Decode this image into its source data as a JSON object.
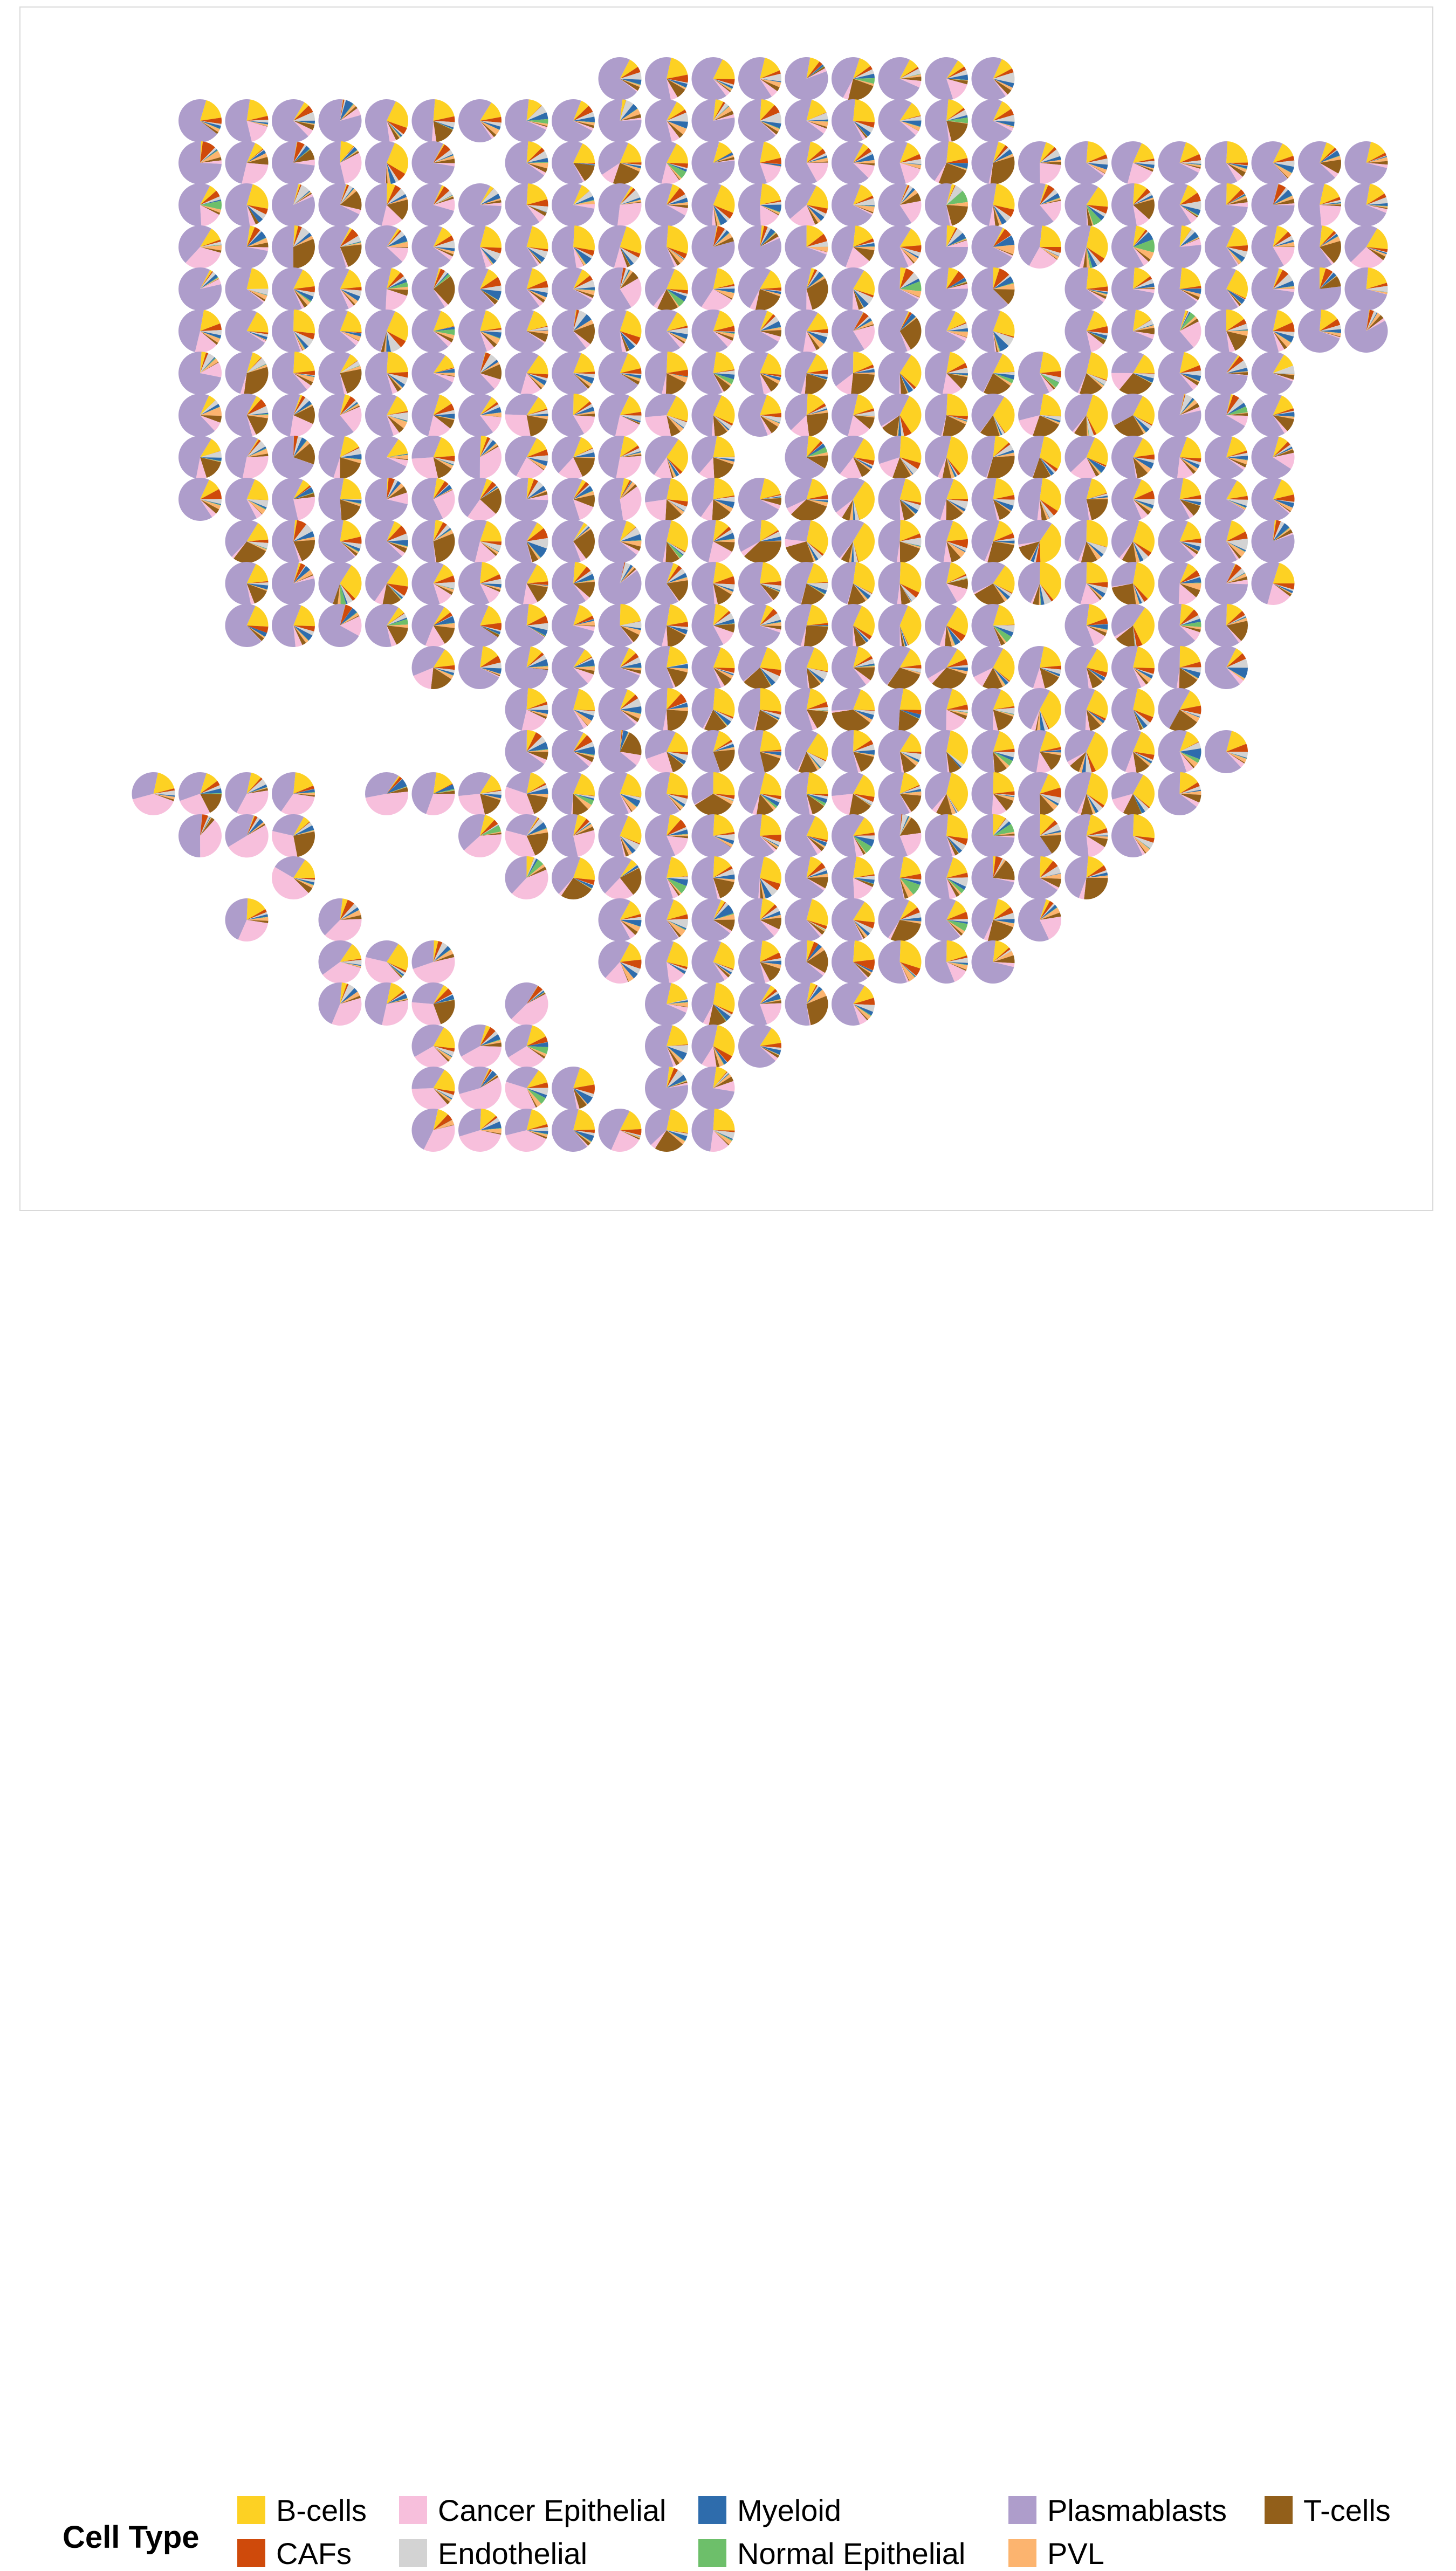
{
  "legend": {
    "title": "Cell Type",
    "items": [
      {
        "label": "B-cells",
        "color": "#FDD123"
      },
      {
        "label": "CAFs",
        "color": "#CF4A0B"
      },
      {
        "label": "Cancer Epithelial",
        "color": "#F7BFDC"
      },
      {
        "label": "Endothelial",
        "color": "#D3D3D3"
      },
      {
        "label": "Myeloid",
        "color": "#2E6CAC"
      },
      {
        "label": "Normal Epithelial",
        "color": "#6DBF6A"
      },
      {
        "label": "Plasmablasts",
        "color": "#AE9DCB"
      },
      {
        "label": "PVL",
        "color": "#FCB46F"
      },
      {
        "label": "T-cells",
        "color": "#925F1A"
      }
    ]
  },
  "chart_data": {
    "type": "scatter-pie",
    "title": "",
    "xlabel": "",
    "ylabel": "",
    "axes_shown": false,
    "grid": false,
    "legend_position": "bottom",
    "categories": [
      "B-cells",
      "CAFs",
      "Cancer Epithelial",
      "Endothelial",
      "Myeloid",
      "Normal Epithelial",
      "Plasmablasts",
      "PVL",
      "T-cells"
    ],
    "grid_rows": 26,
    "grid_cols": 28,
    "spots_by_row": [
      {
        "row": 0,
        "cols": [
          [
            11,
            19
          ]
        ]
      },
      {
        "row": 1,
        "cols": [
          [
            2,
            19
          ]
        ]
      },
      {
        "row": 2,
        "cols": [
          [
            2,
            7
          ],
          [
            9,
            27
          ]
        ]
      },
      {
        "row": 3,
        "cols": [
          [
            2,
            27
          ]
        ]
      },
      {
        "row": 4,
        "cols": [
          [
            2,
            27
          ]
        ]
      },
      {
        "row": 5,
        "cols": [
          [
            2,
            19
          ],
          [
            21,
            27
          ]
        ]
      },
      {
        "row": 6,
        "cols": [
          [
            2,
            19
          ],
          [
            21,
            27
          ]
        ]
      },
      {
        "row": 7,
        "cols": [
          [
            2,
            25
          ]
        ]
      },
      {
        "row": 8,
        "cols": [
          [
            2,
            25
          ]
        ]
      },
      {
        "row": 9,
        "cols": [
          [
            2,
            13
          ],
          [
            15,
            25
          ]
        ]
      },
      {
        "row": 10,
        "cols": [
          [
            2,
            25
          ]
        ]
      },
      {
        "row": 11,
        "cols": [
          [
            3,
            25
          ]
        ]
      },
      {
        "row": 12,
        "cols": [
          [
            3,
            25
          ]
        ]
      },
      {
        "row": 13,
        "cols": [
          [
            3,
            6
          ],
          [
            7,
            19
          ],
          [
            21,
            24
          ]
        ]
      },
      {
        "row": 14,
        "cols": [
          [
            7,
            24
          ]
        ]
      },
      {
        "row": 15,
        "cols": [
          [
            9,
            23
          ]
        ]
      },
      {
        "row": 16,
        "cols": [
          [
            9,
            24
          ]
        ]
      },
      {
        "row": 17,
        "cols": [
          [
            1,
            4
          ],
          [
            6,
            23
          ]
        ]
      },
      {
        "row": 18,
        "cols": [
          [
            2,
            4
          ],
          [
            8,
            22
          ]
        ]
      },
      {
        "row": 19,
        "cols": [
          [
            4,
            4
          ],
          [
            9,
            21
          ]
        ]
      },
      {
        "row": 20,
        "cols": [
          [
            3,
            3
          ],
          [
            5,
            5
          ],
          [
            11,
            20
          ]
        ]
      },
      {
        "row": 21,
        "cols": [
          [
            5,
            7
          ],
          [
            11,
            19
          ]
        ]
      },
      {
        "row": 22,
        "cols": [
          [
            5,
            7
          ],
          [
            9,
            9
          ],
          [
            12,
            16
          ]
        ]
      },
      {
        "row": 23,
        "cols": [
          [
            7,
            9
          ],
          [
            12,
            14
          ]
        ]
      },
      {
        "row": 24,
        "cols": [
          [
            7,
            10
          ],
          [
            12,
            13
          ]
        ]
      },
      {
        "row": 25,
        "cols": [
          [
            7,
            13
          ]
        ]
      }
    ],
    "dominant_type": "Plasmablasts",
    "note": ""
  }
}
